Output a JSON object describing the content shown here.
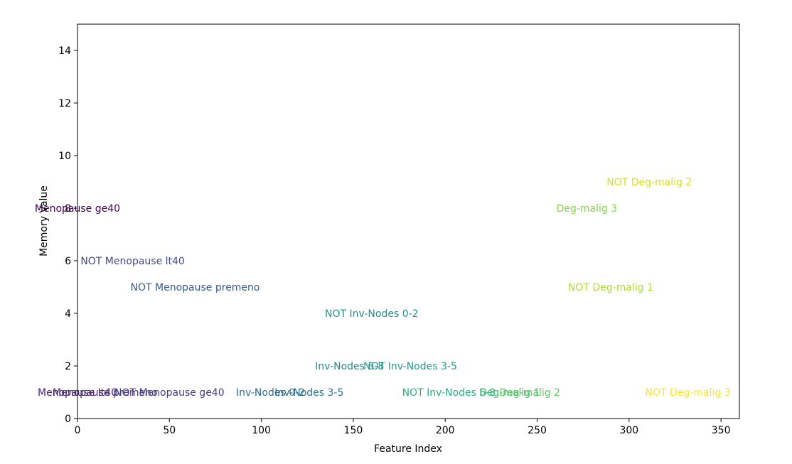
{
  "chart_data": {
    "type": "scatter",
    "title": "",
    "xlabel": "Feature Index",
    "ylabel": "Memory Value",
    "xlim": [
      0,
      360
    ],
    "ylim": [
      0,
      15
    ],
    "xticks": [
      0,
      50,
      100,
      150,
      200,
      250,
      300,
      350
    ],
    "yticks": [
      0,
      2,
      4,
      6,
      8,
      10,
      12,
      14
    ],
    "grid": false,
    "colormap": "viridis",
    "points": [
      {
        "x": 0,
        "y": 8,
        "label": "Menopause ge40",
        "color": "#440154"
      },
      {
        "x": 0,
        "y": 1,
        "label": "Menopause lt40",
        "color": "#48186a"
      },
      {
        "x": 15,
        "y": 1,
        "label": "Menopause premeno",
        "color": "#472d7b"
      },
      {
        "x": 30,
        "y": 6,
        "label": "NOT Menopause lt40",
        "color": "#3e4989"
      },
      {
        "x": 50,
        "y": 1,
        "label": "NOT Menopause ge40",
        "color": "#424086"
      },
      {
        "x": 64,
        "y": 5,
        "label": "NOT Menopause premeno",
        "color": "#38598c"
      },
      {
        "x": 105,
        "y": 1,
        "label": "Inv-Nodes 0-2",
        "color": "#30698e"
      },
      {
        "x": 126,
        "y": 1,
        "label": "Inv-Nodes 3-5",
        "color": "#2c718e"
      },
      {
        "x": 148,
        "y": 2,
        "label": "Inv-Nodes 6-8",
        "color": "#24868e"
      },
      {
        "x": 160,
        "y": 4,
        "label": "NOT Inv-Nodes 0-2",
        "color": "#21918c"
      },
      {
        "x": 181,
        "y": 2,
        "label": "NOT Inv-Nodes 3-5",
        "color": "#1fa088"
      },
      {
        "x": 202,
        "y": 1,
        "label": "NOT Inv-Nodes 6-8",
        "color": "#28ae80"
      },
      {
        "x": 235,
        "y": 1,
        "label": "Deg-malig 1",
        "color": "#3fbc73"
      },
      {
        "x": 246,
        "y": 1,
        "label": "Deg-malig 2",
        "color": "#5ec962"
      },
      {
        "x": 277,
        "y": 8,
        "label": "Deg-malig 3",
        "color": "#84d44b"
      },
      {
        "x": 290,
        "y": 5,
        "label": "NOT Deg-malig 1",
        "color": "#addc30"
      },
      {
        "x": 311,
        "y": 9,
        "label": "NOT Deg-malig 2",
        "color": "#d8e219"
      },
      {
        "x": 332,
        "y": 1,
        "label": "NOT Deg-malig 3",
        "color": "#fde725"
      }
    ]
  }
}
